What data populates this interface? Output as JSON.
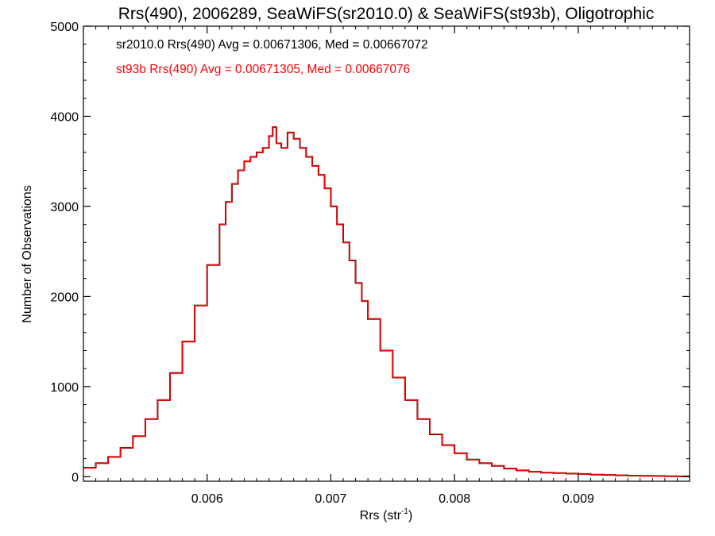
{
  "chart_data": {
    "type": "line",
    "title": "Rrs(490), 2006289, SeaWiFS(sr2010.0) & SeaWiFS(st93b), Oligotrophic",
    "xlabel": "Rrs (str",
    "xlabel_sup": "-1",
    "xlabel_close": ")",
    "ylabel": "Number of Observations",
    "xlim": [
      0.005,
      0.0099
    ],
    "ylim": [
      -50,
      5000
    ],
    "x_ticks": [
      0.006,
      0.007,
      0.008,
      0.009
    ],
    "x_tick_labels": [
      "0.006",
      "0.007",
      "0.008",
      "0.009"
    ],
    "y_ticks": [
      0,
      1000,
      2000,
      3000,
      4000,
      5000
    ],
    "y_tick_labels": [
      "0",
      "1000",
      "2000",
      "3000",
      "4000",
      "5000"
    ],
    "grid": false,
    "series": [
      {
        "name": "sr2010.0",
        "color": "#000000",
        "x": [
          0.005,
          0.0051,
          0.0052,
          0.0053,
          0.0054,
          0.0055,
          0.0056,
          0.0057,
          0.0058,
          0.0059,
          0.006,
          0.0061,
          0.00615,
          0.0062,
          0.00625,
          0.0063,
          0.00635,
          0.0064,
          0.00645,
          0.0065,
          0.00653,
          0.00656,
          0.0066,
          0.00665,
          0.0067,
          0.00675,
          0.0068,
          0.00685,
          0.0069,
          0.00695,
          0.007,
          0.00705,
          0.0071,
          0.00715,
          0.0072,
          0.00725,
          0.0073,
          0.0074,
          0.0075,
          0.0076,
          0.0077,
          0.0078,
          0.0079,
          0.008,
          0.0081,
          0.0082,
          0.0083,
          0.0084,
          0.0085,
          0.0086,
          0.0087,
          0.0088,
          0.0089,
          0.009,
          0.0091,
          0.0092,
          0.0093,
          0.0094,
          0.0095,
          0.0096,
          0.0097,
          0.0098,
          0.0099
        ],
        "y": [
          100,
          150,
          220,
          320,
          450,
          640,
          850,
          1150,
          1500,
          1900,
          2350,
          2800,
          3050,
          3250,
          3400,
          3500,
          3550,
          3600,
          3650,
          3780,
          3880,
          3700,
          3650,
          3820,
          3750,
          3650,
          3550,
          3450,
          3350,
          3200,
          3000,
          2800,
          2600,
          2400,
          2150,
          1950,
          1750,
          1400,
          1100,
          850,
          640,
          470,
          350,
          260,
          190,
          150,
          120,
          90,
          70,
          55,
          45,
          40,
          35,
          30,
          22,
          20,
          15,
          12,
          10,
          8,
          5,
          4,
          3
        ]
      },
      {
        "name": "st93b",
        "color": "#ff0000",
        "x": [
          0.005,
          0.0051,
          0.0052,
          0.0053,
          0.0054,
          0.0055,
          0.0056,
          0.0057,
          0.0058,
          0.0059,
          0.006,
          0.0061,
          0.00615,
          0.0062,
          0.00625,
          0.0063,
          0.00635,
          0.0064,
          0.00645,
          0.0065,
          0.00653,
          0.00656,
          0.0066,
          0.00665,
          0.0067,
          0.00675,
          0.0068,
          0.00685,
          0.0069,
          0.00695,
          0.007,
          0.00705,
          0.0071,
          0.00715,
          0.0072,
          0.00725,
          0.0073,
          0.0074,
          0.0075,
          0.0076,
          0.0077,
          0.0078,
          0.0079,
          0.008,
          0.0081,
          0.0082,
          0.0083,
          0.0084,
          0.0085,
          0.0086,
          0.0087,
          0.0088,
          0.0089,
          0.009,
          0.0091,
          0.0092,
          0.0093,
          0.0094,
          0.0095,
          0.0096,
          0.0097,
          0.0098,
          0.0099
        ],
        "y": [
          100,
          150,
          220,
          320,
          450,
          640,
          850,
          1150,
          1500,
          1900,
          2350,
          2800,
          3050,
          3250,
          3400,
          3500,
          3550,
          3600,
          3650,
          3780,
          3880,
          3700,
          3650,
          3820,
          3750,
          3650,
          3550,
          3450,
          3350,
          3200,
          3000,
          2800,
          2600,
          2400,
          2150,
          1950,
          1750,
          1400,
          1100,
          850,
          640,
          470,
          350,
          260,
          190,
          150,
          120,
          90,
          70,
          55,
          45,
          40,
          35,
          30,
          22,
          20,
          15,
          12,
          10,
          8,
          5,
          4,
          3
        ]
      }
    ],
    "annotations": [
      {
        "text": "sr2010.0 Rrs(490) Avg = 0.00671306, Med = 0.00667072",
        "color": "#000000"
      },
      {
        "text": "st93b Rrs(490) Avg = 0.00671305, Med = 0.00667076",
        "color": "#ff0000"
      }
    ]
  }
}
